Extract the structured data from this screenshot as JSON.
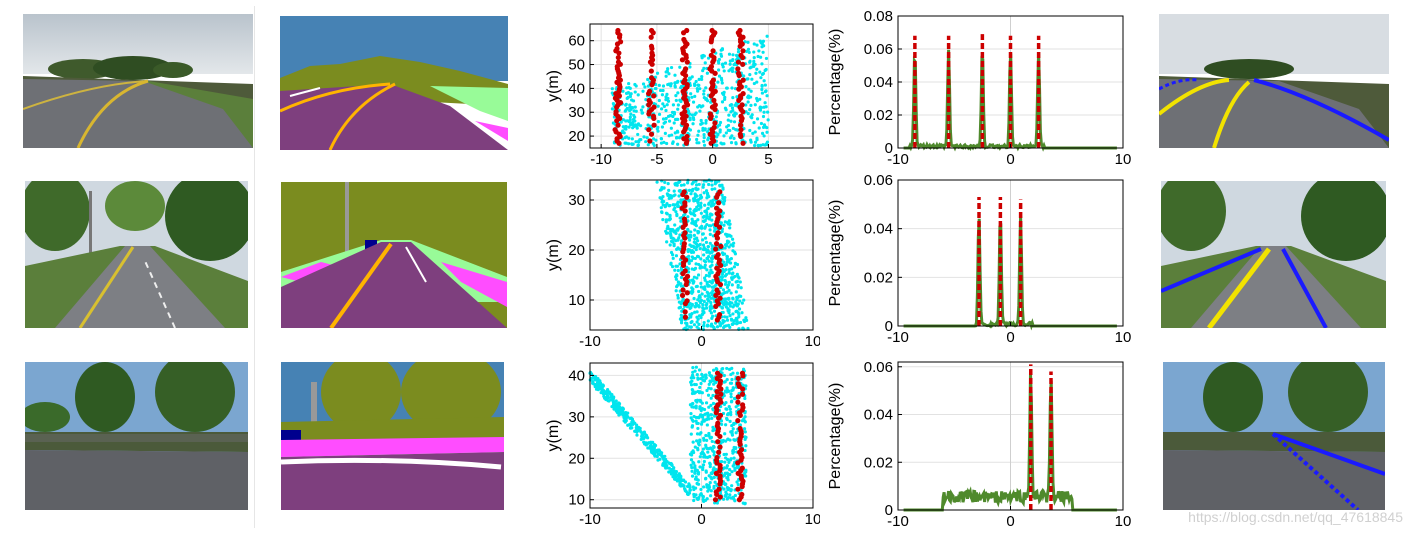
{
  "figure": {
    "rows": [
      "curved-road",
      "tree-lined-road",
      "intersection"
    ],
    "columns": [
      "input-image",
      "semantic-segmentation",
      "lane-point-distribution",
      "lateral-histogram",
      "detected-lanes"
    ],
    "watermark": "https://blog.csdn.net/qq_47618845"
  },
  "colors": {
    "scatter_cyan": "#00e5ee",
    "peak_red": "#cc0000",
    "hist_green": "#4f8a2c",
    "lane_yellow": "#f2e300",
    "lane_blue": "#1a1aff",
    "seg_sky": "#4682b4",
    "seg_vegetation": "#7b8c1f",
    "seg_road": "#7e3f7e",
    "seg_sidewalk": "#ff4dff",
    "seg_terrain": "#98fb98",
    "seg_pole": "#999999",
    "seg_marking_yellow": "#ffb400",
    "seg_car": "#00008e"
  },
  "chart_data": [
    {
      "type": "scatter",
      "row": 1,
      "ylabel": "y(m)",
      "xlim": [
        -11,
        9
      ],
      "ylim": [
        15,
        67
      ],
      "xticks": [
        "-10",
        "-5",
        "0",
        "5"
      ],
      "yticks": [
        "20",
        "30",
        "40",
        "50",
        "60"
      ],
      "xtick_values": [
        -10,
        -5,
        0,
        5
      ],
      "ytick_values": [
        20,
        30,
        40,
        50,
        60
      ],
      "lane_x": [
        -8.5,
        -5.5,
        -2.5,
        0,
        2.5
      ]
    },
    {
      "type": "bar",
      "row": 1,
      "ylabel": "Percentage(%)",
      "xlim": [
        -10,
        10
      ],
      "ylim": [
        0,
        0.08
      ],
      "xticks": [
        "-10",
        "0",
        "10"
      ],
      "yticks": [
        "0",
        "0.02",
        "0.04",
        "0.06",
        "0.08"
      ],
      "xtick_values": [
        -10,
        0,
        10
      ],
      "ytick_values": [
        0,
        0.02,
        0.04,
        0.06,
        0.08
      ],
      "peaks": [
        {
          "x": -8.5,
          "value": 0.068
        },
        {
          "x": -5.5,
          "value": 0.068
        },
        {
          "x": -2.5,
          "value": 0.069
        },
        {
          "x": 0,
          "value": 0.068
        },
        {
          "x": 2.5,
          "value": 0.068
        }
      ]
    },
    {
      "type": "scatter",
      "row": 2,
      "ylabel": "y(m)",
      "xlim": [
        -10,
        10
      ],
      "ylim": [
        4,
        34
      ],
      "xticks": [
        "-10",
        "0",
        "10"
      ],
      "yticks": [
        "10",
        "20",
        "30"
      ],
      "xtick_values": [
        -10,
        0,
        10
      ],
      "ytick_values": [
        10,
        20,
        30
      ],
      "lane_x": [
        -1.5,
        1.5
      ]
    },
    {
      "type": "bar",
      "row": 2,
      "ylabel": "Percentage(%)",
      "xlim": [
        -10,
        10
      ],
      "ylim": [
        0,
        0.06
      ],
      "xticks": [
        "-10",
        "0",
        "10"
      ],
      "yticks": [
        "0",
        "0.02",
        "0.04",
        "0.06"
      ],
      "xtick_values": [
        -10,
        0,
        10
      ],
      "ytick_values": [
        0,
        0.02,
        0.04,
        0.06
      ],
      "peaks": [
        {
          "x": -2.8,
          "value": 0.053
        },
        {
          "x": -0.9,
          "value": 0.053
        },
        {
          "x": 0.9,
          "value": 0.052
        }
      ]
    },
    {
      "type": "scatter",
      "row": 3,
      "ylabel": "y(m)",
      "xlim": [
        -10,
        10
      ],
      "ylim": [
        8,
        43
      ],
      "xticks": [
        "-10",
        "0",
        "10"
      ],
      "yticks": [
        "10",
        "20",
        "30",
        "40"
      ],
      "xtick_values": [
        -10,
        0,
        10
      ],
      "ytick_values": [
        10,
        20,
        30,
        40
      ],
      "lane_x": [
        1.5,
        3.5
      ]
    },
    {
      "type": "bar",
      "row": 3,
      "ylabel": "Percentage(%)",
      "xlim": [
        -10,
        10
      ],
      "ylim": [
        0,
        0.062
      ],
      "xticks": [
        "-10",
        "0",
        "10"
      ],
      "yticks": [
        "0",
        "0.02",
        "0.04",
        "0.06"
      ],
      "xtick_values": [
        -10,
        0,
        10
      ],
      "ytick_values": [
        0,
        0.02,
        0.04,
        0.06
      ],
      "peaks": [
        {
          "x": 1.8,
          "value": 0.061
        },
        {
          "x": 3.6,
          "value": 0.058
        }
      ]
    }
  ]
}
